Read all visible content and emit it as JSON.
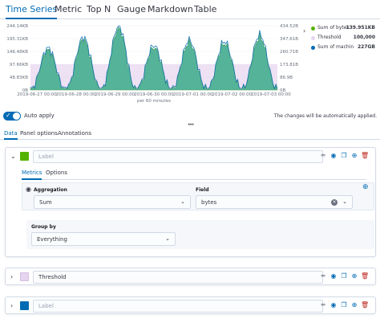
{
  "top_tabs": [
    "Time Series",
    "Metric",
    "Top N",
    "Gauge",
    "Markdown",
    "Table"
  ],
  "chart_data": {
    "type": "area",
    "left_axis_ticks": [
      "244.14KB",
      "195.31KB",
      "146.48KB",
      "97.66KB",
      "48.83KB",
      "0B"
    ],
    "right_axis_ticks": [
      "434.52B",
      "347.61B",
      "260.71B",
      "173.81B",
      "86.9B",
      "0B"
    ],
    "x_ticks": [
      "2019-06-27 00:00",
      "2019-06-28 00:00",
      "2019-06-29 00:00",
      "2019-06-30 00:00",
      "2019-07-01 00:00",
      "2019-07-02 00:00",
      "2019-07-03 00:00"
    ],
    "xlabel": "per 60 minutes",
    "threshold": 100000,
    "series": [
      {
        "name": "Sum of bytes",
        "value": "139.951KB",
        "color": "#54b399"
      },
      {
        "name": "Threshold",
        "value": "100,000",
        "color": "#e7d4f0"
      },
      {
        "name": "Sum of machin...",
        "value": "227GB",
        "color": "#006bb4"
      }
    ]
  },
  "auto_apply": {
    "label": "Auto apply",
    "on": true,
    "message": "The changes will be automatically applied."
  },
  "editor_tabs": [
    "Data",
    "Panel options",
    "Annotations"
  ],
  "series_panels": [
    {
      "color": "#54b300",
      "label_placeholder": "Label",
      "label_value": "",
      "expanded": true,
      "inner_tabs": [
        "Metrics",
        "Options"
      ],
      "aggregation_label": "Aggregation",
      "aggregation_value": "Sum",
      "field_label": "Field",
      "field_value": "bytes",
      "group_by_label": "Group by",
      "group_by_value": "Everything"
    },
    {
      "color": "#e7d4f0",
      "label_placeholder": "Label",
      "label_value": "Threshold",
      "expanded": false
    },
    {
      "color": "#006bb4",
      "label_placeholder": "Label",
      "label_value": "",
      "expanded": false
    }
  ],
  "icons": {
    "toggle_visibility": "eye-icon",
    "clone": "copy-icon",
    "add": "plus-circle-icon",
    "delete": "trash-icon",
    "drag": "grab-handle-icon",
    "expand": "chevron-icon"
  },
  "colors": {
    "accent": "#006bb4",
    "danger": "#bd271e",
    "border": "#d3dae6"
  }
}
